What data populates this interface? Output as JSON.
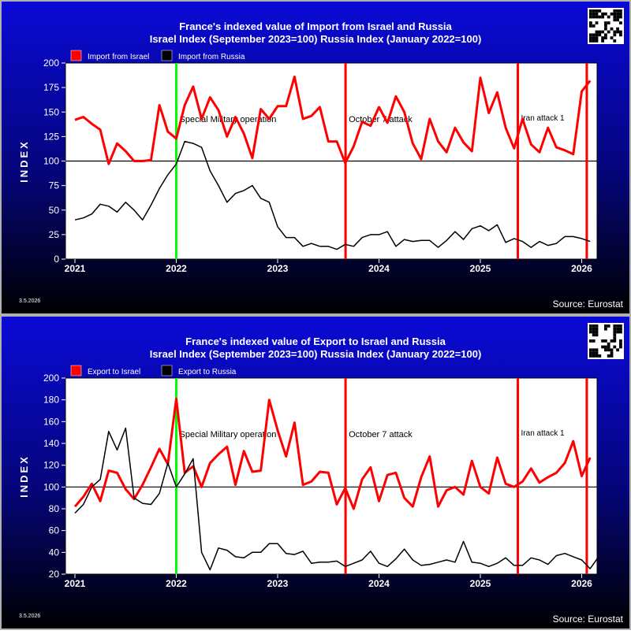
{
  "chart_data": [
    {
      "type": "line",
      "title": "France's indexed value of Import from Israel and Russia",
      "subtitle": "Israel Index (September 2023=100) Russia Index (January 2022=100)",
      "ylabel": "INDEX",
      "ylim": [
        0,
        200
      ],
      "yticks": [
        0,
        25,
        50,
        75,
        100,
        125,
        150,
        175,
        200
      ],
      "xlim": [
        2020.92,
        2026.17
      ],
      "xticks": [
        2021,
        2022,
        2023,
        2024,
        2025,
        2026
      ],
      "xtick_labels": [
        "2021",
        "2022",
        "2023",
        "2024",
        "2025",
        "2026"
      ],
      "reference_line": 100,
      "grid": false,
      "legend_position": "top-left",
      "series": [
        {
          "name": "Import from Israel",
          "color": "#ff0000",
          "values": [
            142,
            145,
            138,
            132,
            97,
            118,
            110,
            100,
            100,
            101,
            157,
            130,
            123,
            157,
            176,
            143,
            165,
            152,
            125,
            145,
            128,
            103,
            153,
            143,
            156,
            156,
            186,
            143,
            146,
            155,
            120,
            120,
            98,
            115,
            140,
            136,
            155,
            139,
            166,
            150,
            118,
            102,
            143,
            120,
            109,
            134,
            119,
            110,
            185,
            149,
            170,
            134,
            113,
            143,
            117,
            109,
            134,
            114,
            111,
            107,
            171,
            182
          ]
        },
        {
          "name": "Import from Russia",
          "color": "#000000",
          "values": [
            40,
            42,
            46,
            56,
            54,
            48,
            58,
            50,
            40,
            55,
            72,
            86,
            97,
            120,
            118,
            114,
            90,
            75,
            58,
            67,
            70,
            75,
            62,
            58,
            33,
            22,
            22,
            13,
            16,
            13,
            13,
            10,
            15,
            13,
            22,
            25,
            25,
            28,
            13,
            20,
            18,
            19,
            19,
            12,
            19,
            28,
            20,
            31,
            34,
            29,
            35,
            17,
            21,
            18,
            12,
            18,
            14,
            16,
            23,
            23,
            21,
            18
          ]
        }
      ],
      "annotations": [
        {
          "label": "Special Military operation",
          "x": 2022.0,
          "color": "#00ff00"
        },
        {
          "label": "October 7 attack",
          "x": 2023.67,
          "color": "#ff0000"
        },
        {
          "label": "Iran attack 1",
          "x": 2025.37,
          "color": "#ff0000"
        },
        {
          "label": "",
          "x": 2026.05,
          "color": "#ff0000"
        }
      ]
    },
    {
      "type": "line",
      "title": "France's indexed value of Export to Israel and Russia",
      "subtitle": "Israel Index (September 2023=100) Russia Index (January 2022=100)",
      "ylabel": "INDEX",
      "ylim": [
        20,
        200
      ],
      "yticks": [
        20,
        40,
        60,
        80,
        100,
        120,
        140,
        160,
        180,
        200
      ],
      "xlim": [
        2020.92,
        2026.17
      ],
      "xticks": [
        2021,
        2022,
        2023,
        2024,
        2025,
        2026
      ],
      "xtick_labels": [
        "2021",
        "2022",
        "2023",
        "2024",
        "2025",
        "2026"
      ],
      "reference_line": 100,
      "grid": false,
      "legend_position": "top-left",
      "series": [
        {
          "name": "Export to Israel",
          "color": "#ff0000",
          "values": [
            82,
            91,
            103,
            87,
            115,
            113,
            98,
            89,
            102,
            118,
            135,
            121,
            181,
            113,
            119,
            100,
            122,
            130,
            137,
            102,
            133,
            114,
            115,
            180,
            152,
            128,
            159,
            102,
            105,
            114,
            113,
            84,
            99,
            80,
            107,
            118,
            87,
            111,
            113,
            90,
            82,
            109,
            128,
            82,
            97,
            100,
            93,
            124,
            100,
            94,
            127,
            103,
            100,
            105,
            117,
            104,
            109,
            113,
            122,
            142,
            110,
            127
          ]
        },
        {
          "name": "Export to Russia",
          "color": "#000000",
          "values": [
            76,
            84,
            100,
            107,
            151,
            134,
            154,
            90,
            85,
            84,
            94,
            122,
            100,
            112,
            126,
            40,
            24,
            44,
            42,
            36,
            35,
            40,
            40,
            48,
            48,
            39,
            38,
            41,
            30,
            31,
            31,
            32,
            27,
            30,
            33,
            41,
            30,
            27,
            34,
            43,
            33,
            28,
            29,
            31,
            33,
            31,
            50,
            31,
            30,
            27,
            30,
            35,
            28,
            28,
            35,
            33,
            29,
            37,
            39,
            36,
            33,
            25,
            36
          ]
        }
      ],
      "annotations": [
        {
          "label": "Special Military operation",
          "x": 2022.0,
          "color": "#00ff00"
        },
        {
          "label": "October 7 attack",
          "x": 2023.67,
          "color": "#ff0000"
        },
        {
          "label": "Iran attack 1",
          "x": 2025.37,
          "color": "#ff0000"
        },
        {
          "label": "",
          "x": 2026.05,
          "color": "#ff0000"
        }
      ]
    }
  ],
  "panels": [
    {
      "date": "3.5.2026",
      "source": "Source: Eurostat"
    },
    {
      "date": "3.5.2026",
      "source": "Source: Eurostat"
    }
  ],
  "colors": {
    "background_top": "#0a0ad8",
    "background_bottom": "#000000",
    "plot_bg": "#ffffff"
  }
}
